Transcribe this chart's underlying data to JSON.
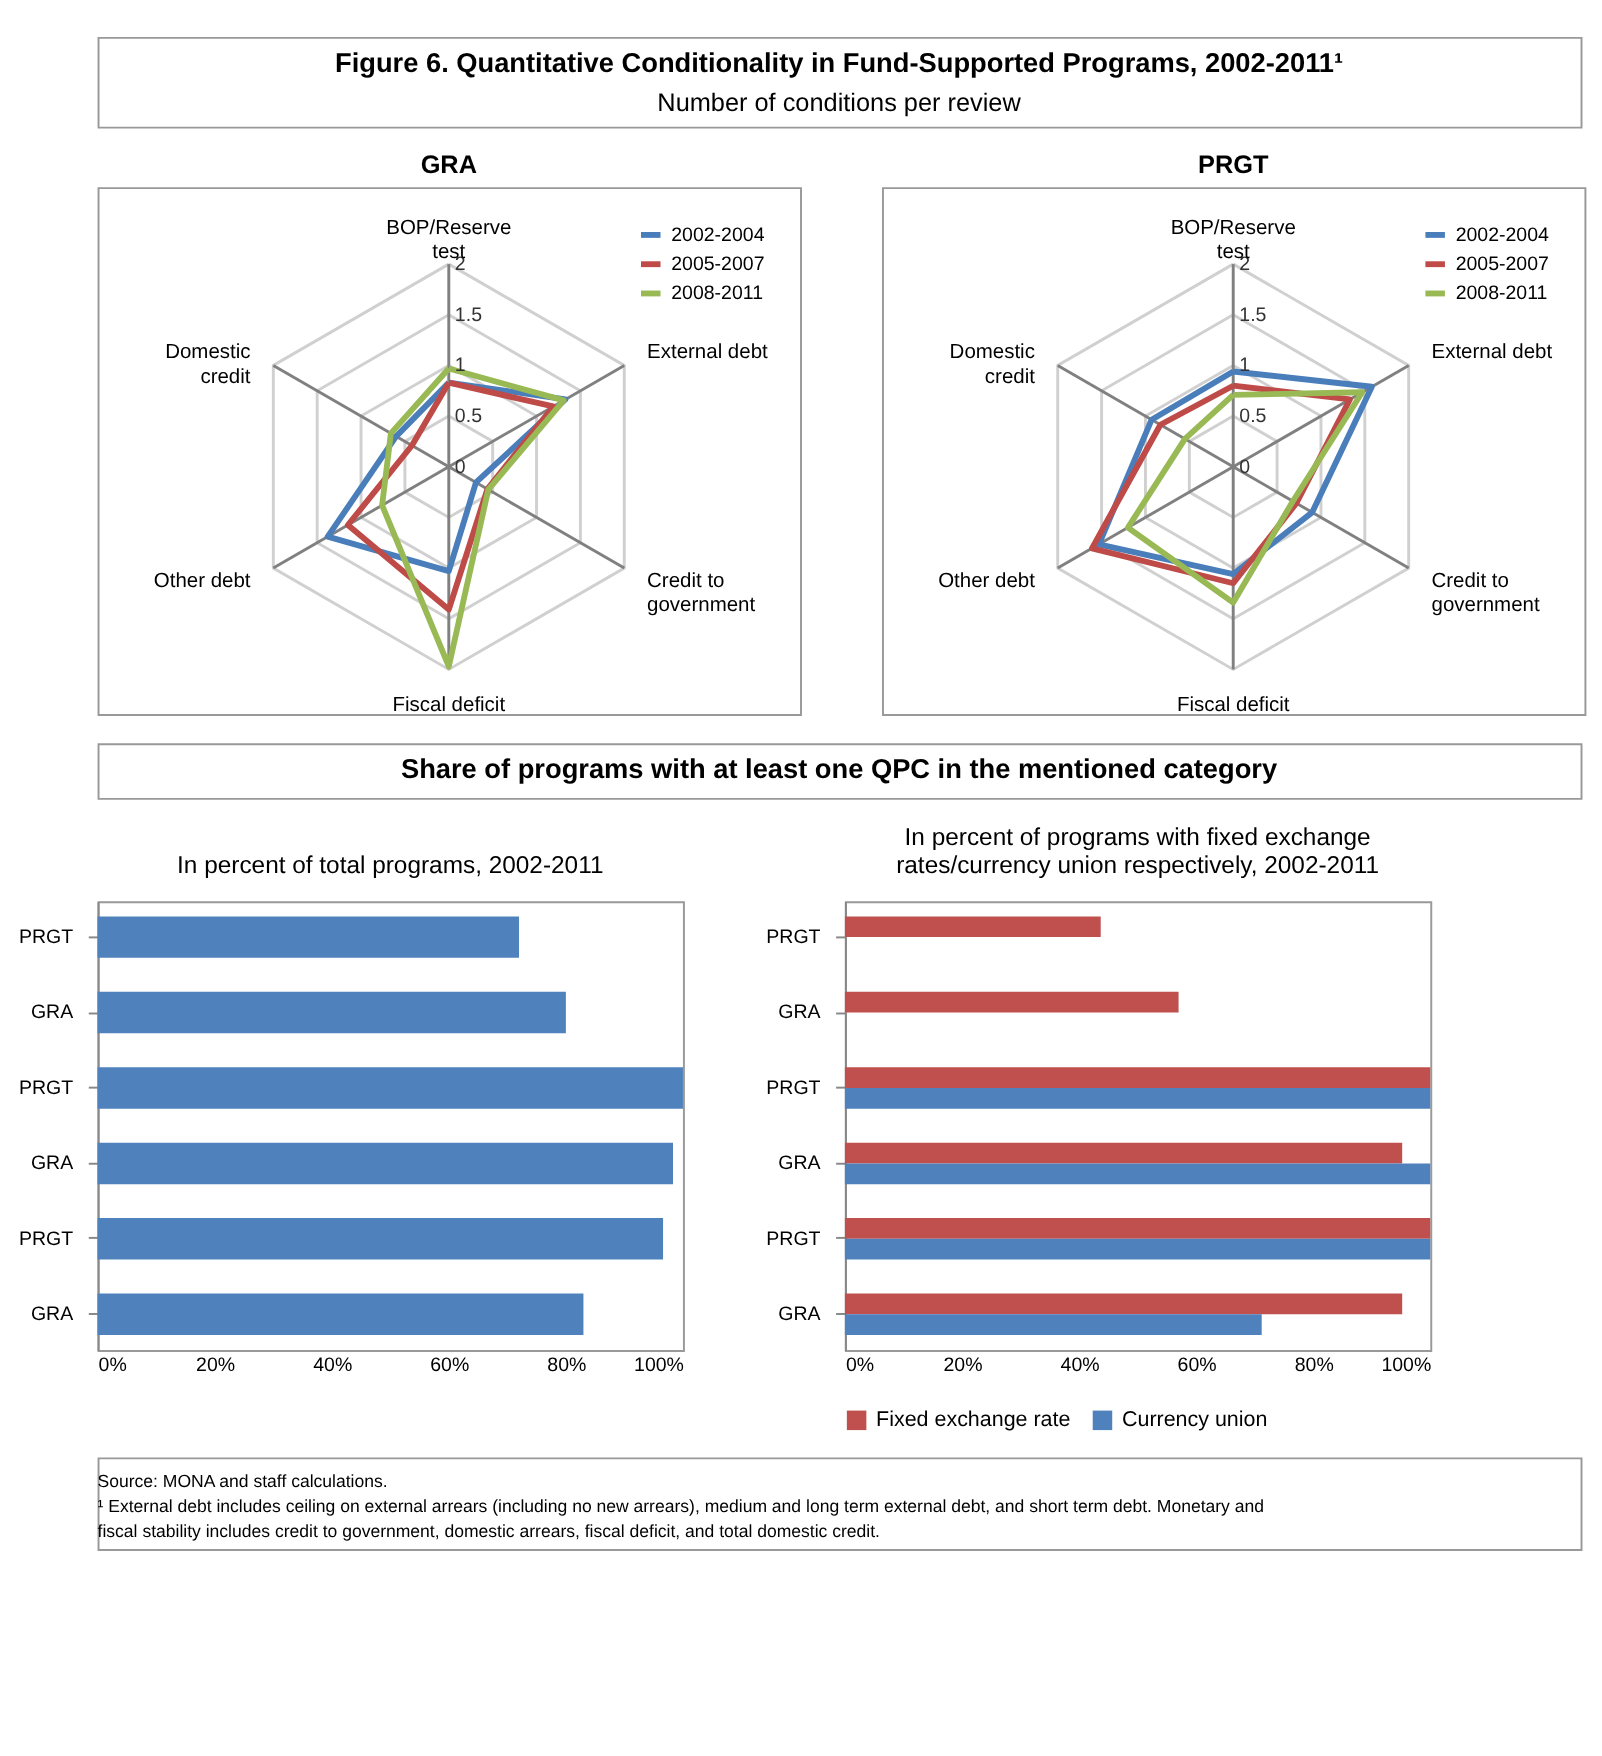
{
  "chart_data": [
    {
      "type": "other",
      "title": "Figure 6. Quantitative  Conditionality  in Fund-Supported  Programs, 2002-2011¹",
      "subtitle": "Number of conditions per review"
    },
    {
      "type": "radar",
      "title": "GRA",
      "categories": [
        "BOP/Reserve test",
        "External debt",
        "Credit to government",
        "Fiscal deficit",
        "Other debt",
        "Domestic credit"
      ],
      "ylim": [
        0,
        2
      ],
      "yticks": [
        0,
        0.5,
        1,
        1.5,
        2
      ],
      "grid": true,
      "legend": "top right",
      "series": [
        {
          "name": "2002-2004",
          "color": "#4a7ebb",
          "values": [
            0.83,
            1.33,
            0.31,
            1.03,
            1.38,
            0.6
          ]
        },
        {
          "name": "2005-2007",
          "color": "#be4b48",
          "values": [
            0.83,
            1.19,
            0.44,
            1.41,
            1.15,
            0.42
          ]
        },
        {
          "name": "2008-2011",
          "color": "#98b954",
          "values": [
            0.97,
            1.31,
            0.45,
            1.97,
            0.76,
            0.66
          ]
        }
      ]
    },
    {
      "type": "radar",
      "title": "PRGT",
      "categories": [
        "BOP/Reserve test",
        "External debt",
        "Credit to government",
        "Fiscal deficit",
        "Other debt",
        "Domestic credit"
      ],
      "ylim": [
        0,
        2
      ],
      "yticks": [
        0,
        0.5,
        1,
        1.5,
        2
      ],
      "grid": true,
      "legend": "top right",
      "series": [
        {
          "name": "2002-2004",
          "color": "#4a7ebb",
          "values": [
            0.94,
            1.58,
            0.9,
            1.06,
            1.53,
            0.93
          ]
        },
        {
          "name": "2005-2007",
          "color": "#be4b48",
          "values": [
            0.8,
            1.33,
            0.72,
            1.15,
            1.61,
            0.83
          ]
        },
        {
          "name": "2008-2011",
          "color": "#98b954",
          "values": [
            0.71,
            1.47,
            0.68,
            1.34,
            1.2,
            0.55
          ]
        }
      ]
    },
    {
      "type": "other",
      "title": "Share of programs with at least one QPC in the mentioned category"
    },
    {
      "type": "bar",
      "orientation": "horizontal",
      "title": "In percent of total programs, 2002-2011",
      "categories": [
        "PRGT",
        "GRA",
        "PRGT",
        "GRA",
        "PRGT",
        "GRA"
      ],
      "values": [
        72,
        80,
        100,
        98.3,
        96.6,
        83
      ],
      "color": "#4f81bd",
      "xlim": [
        0,
        100
      ],
      "xticks": [
        {
          "value": 0,
          "label": "0%"
        },
        {
          "value": 20,
          "label": "20%"
        },
        {
          "value": 40,
          "label": "40%"
        },
        {
          "value": 60,
          "label": "60%"
        },
        {
          "value": 80,
          "label": "80%"
        },
        {
          "value": 100,
          "label": "100%"
        }
      ]
    },
    {
      "type": "bar",
      "orientation": "horizontal",
      "title": "In percent of programs with fixed exchange rates/currency union respectively, 2002-2011",
      "categories": [
        "PRGT",
        "GRA",
        "PRGT",
        "GRA",
        "PRGT",
        "GRA"
      ],
      "xlim": [
        0,
        100
      ],
      "legend": "bottom",
      "xticks": [
        {
          "value": 0,
          "label": "0%"
        },
        {
          "value": 20,
          "label": "20%"
        },
        {
          "value": 40,
          "label": "40%"
        },
        {
          "value": 60,
          "label": "60%"
        },
        {
          "value": 80,
          "label": "80%"
        },
        {
          "value": 100,
          "label": "100%"
        }
      ],
      "series": [
        {
          "name": "Fixed exchange rate",
          "color": "#c0504d",
          "values": [
            43.7,
            57,
            100,
            95.2,
            100,
            95.2
          ]
        },
        {
          "name": "Currency union",
          "color": "#4f81bd",
          "values": [
            null,
            null,
            100,
            100,
            100,
            71.2
          ]
        }
      ]
    },
    {
      "type": "other",
      "annotations": [
        "Source: MONA and staff calculations.",
        "¹ External debt includes ceiling on external arrears (including no new arrears), medium and long term external debt, and short term debt. Monetary and fiscal stability includes credit to government, domestic arrears, fiscal deficit, and total domestic credit."
      ]
    }
  ]
}
